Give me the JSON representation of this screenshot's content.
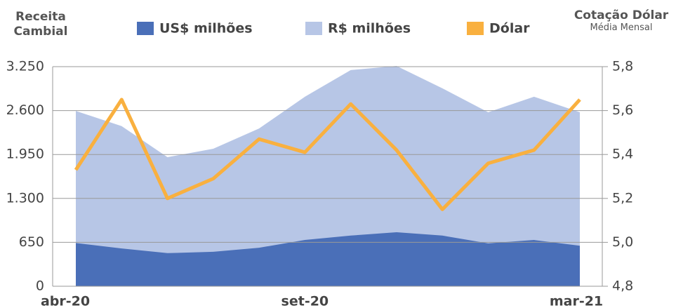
{
  "chart_data": {
    "type": "area-line",
    "y_label": "Receita Cambial",
    "y2_label": "Cotação Dólar",
    "y2_sublabel": "Média Mensal",
    "categories": [
      "abr-20",
      null,
      null,
      null,
      null,
      "set-20",
      null,
      null,
      null,
      null,
      null,
      "mar-21"
    ],
    "series": [
      {
        "name": "R$ milhões",
        "color": "#b7c6e6",
        "type": "area",
        "values": [
          2595,
          2370,
          1910,
          2035,
          2335,
          2805,
          3200,
          3260,
          2930,
          2575,
          2805,
          2575
        ]
      },
      {
        "name": "US$ milhões",
        "color": "#4a6fb8",
        "type": "area",
        "values": [
          640,
          560,
          490,
          510,
          570,
          685,
          750,
          800,
          750,
          635,
          685,
          600
        ]
      },
      {
        "name": "Dólar",
        "color": "#f9b03f",
        "type": "line",
        "axis": "y2",
        "values": [
          5.33,
          5.65,
          5.2,
          5.29,
          5.47,
          5.41,
          5.63,
          5.42,
          5.15,
          5.36,
          5.42,
          5.65
        ]
      }
    ],
    "legend_order": [
      1,
      0,
      2
    ],
    "ylim": [
      0,
      3250
    ],
    "yticks": [
      0,
      650,
      {
        "value": 1300,
        "label": "1.300"
      },
      {
        "value": 1950,
        "label": "1.950"
      },
      {
        "value": 2600,
        "label": "2.600"
      },
      {
        "value": 3250,
        "label": "3.250"
      }
    ],
    "y2lim": [
      4.8,
      5.8
    ],
    "y2ticks": [
      {
        "value": 4.8,
        "label": "4,8"
      },
      {
        "value": 5.0,
        "label": "5,0"
      },
      {
        "value": 5.2,
        "label": "5,2"
      },
      {
        "value": 5.4,
        "label": "5,4"
      },
      {
        "value": 5.6,
        "label": "5,6"
      },
      {
        "value": 5.8,
        "label": "5,8"
      }
    ],
    "grid": true
  }
}
